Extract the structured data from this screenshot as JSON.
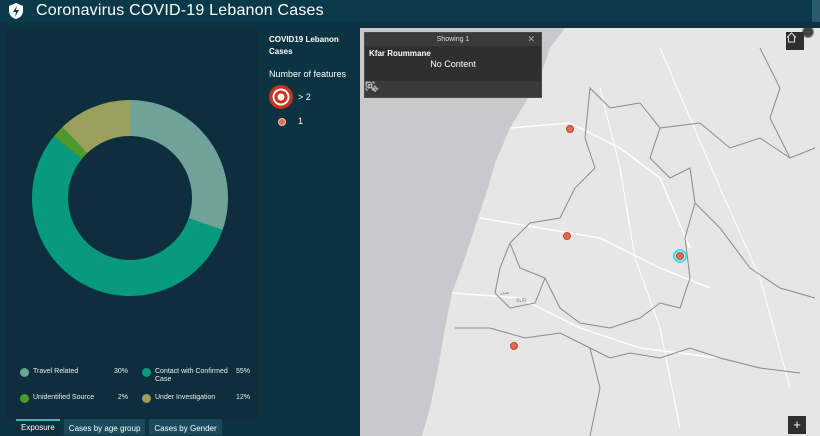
{
  "header": {
    "title": "Coronavirus COVID-19 Lebanon Cases",
    "logo_icon": "shield-lightning-icon"
  },
  "chart_data": {
    "type": "pie",
    "donut": true,
    "title": "",
    "categories": [
      "Travel Related",
      "Contact with Confirmed Case",
      "Unidentified Source",
      "Under Investigation"
    ],
    "values": [
      30,
      55,
      2,
      12
    ],
    "labels": [
      "30%",
      "55%",
      "2%",
      "12%"
    ],
    "colors": [
      "#6fa39a",
      "#079a7f",
      "#4c9a2a",
      "#9aa05c"
    ],
    "legend": "bottom"
  },
  "legend": {
    "items": [
      {
        "label": "Travel Related",
        "pct": "30%",
        "color": "#6fa39a"
      },
      {
        "label": "Contact with Confirmed Case",
        "pct": "55%",
        "color": "#079a7f"
      },
      {
        "label": "Unidentified Source",
        "pct": "2%",
        "color": "#4c9a2a"
      },
      {
        "label": "Under Investigation",
        "pct": "12%",
        "color": "#9aa05c"
      }
    ]
  },
  "tabs": [
    {
      "label": "Exposure",
      "active": true
    },
    {
      "label": "Cases by age group",
      "active": false
    },
    {
      "label": "Cases by Gender",
      "active": false
    }
  ],
  "layer_legend": {
    "title": "COVID19 Lebanon Cases",
    "subtitle": "Number of features",
    "big_label": "> 2",
    "small_label": "1",
    "big_color": "#c8321e",
    "small_color": "#e06c52"
  },
  "popup": {
    "header": "Showing 1",
    "close_icon": "close-icon",
    "name": "Kfar Roummane",
    "content": "No Content",
    "tools": [
      "pan-icon",
      "zoom-icon",
      "fullscreen-icon"
    ]
  },
  "map": {
    "label": "SUR",
    "label_ar": "صور",
    "home_icon": "home-icon",
    "zoom_in_label": "+"
  }
}
